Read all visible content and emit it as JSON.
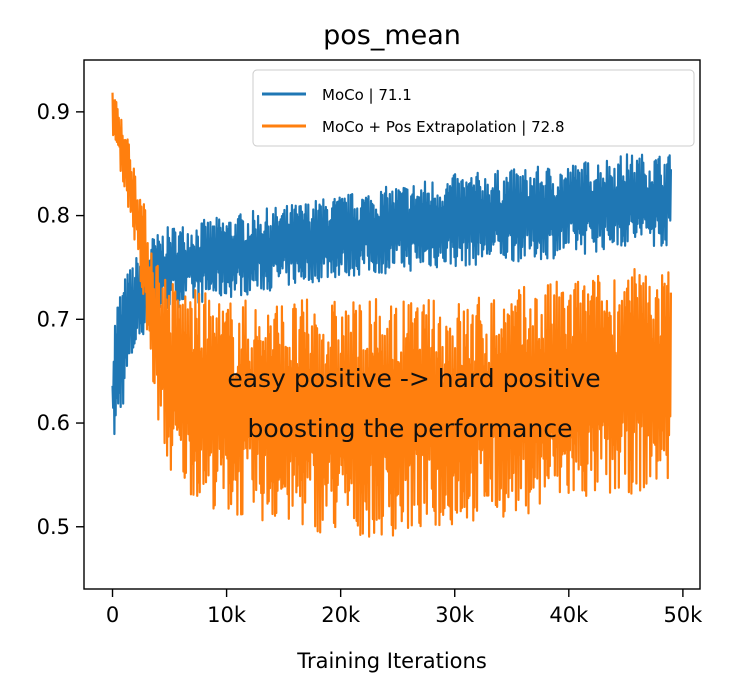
{
  "chart_data": {
    "type": "line",
    "title": "pos_mean",
    "xlabel": "Training Iterations",
    "ylabel": "",
    "xlim": [
      -2500,
      51500
    ],
    "ylim": [
      0.44,
      0.95
    ],
    "x_ticks": [
      0,
      10000,
      20000,
      30000,
      40000,
      50000
    ],
    "x_tick_labels": [
      "0",
      "10k",
      "20k",
      "30k",
      "40k",
      "50k"
    ],
    "y_ticks": [
      0.5,
      0.6,
      0.7,
      0.8,
      0.9
    ],
    "y_tick_labels": [
      "0.5",
      "0.6",
      "0.7",
      "0.8",
      "0.9"
    ],
    "grid": false,
    "legend_position": "top-right",
    "series": [
      {
        "name": "MoCo | 71.1",
        "color": "#1f77b4",
        "envelope_x": [
          0,
          300,
          1000,
          2000,
          3500,
          5000,
          10000,
          15000,
          20000,
          25000,
          30000,
          35000,
          40000,
          45000,
          49000
        ],
        "upper": [
          0.67,
          0.72,
          0.74,
          0.76,
          0.78,
          0.79,
          0.8,
          0.81,
          0.82,
          0.83,
          0.84,
          0.845,
          0.85,
          0.86,
          0.86
        ],
        "lower": [
          0.58,
          0.58,
          0.62,
          0.67,
          0.7,
          0.71,
          0.72,
          0.73,
          0.74,
          0.745,
          0.75,
          0.755,
          0.76,
          0.77,
          0.77
        ]
      },
      {
        "name": "MoCo + Pos Extrapolation | 72.8",
        "color": "#ff7f0e",
        "envelope_x": [
          0,
          300,
          1000,
          2000,
          3000,
          4000,
          5000,
          7000,
          10000,
          15000,
          20000,
          25000,
          30000,
          35000,
          40000,
          45000,
          49000
        ],
        "upper": [
          0.925,
          0.92,
          0.89,
          0.85,
          0.8,
          0.76,
          0.74,
          0.73,
          0.72,
          0.72,
          0.72,
          0.72,
          0.72,
          0.73,
          0.74,
          0.75,
          0.75
        ],
        "lower": [
          0.88,
          0.86,
          0.83,
          0.77,
          0.68,
          0.6,
          0.55,
          0.53,
          0.51,
          0.5,
          0.49,
          0.49,
          0.5,
          0.51,
          0.52,
          0.53,
          0.54
        ]
      }
    ],
    "annotations": [
      "easy positive -> hard positive",
      "boosting the performance"
    ]
  }
}
